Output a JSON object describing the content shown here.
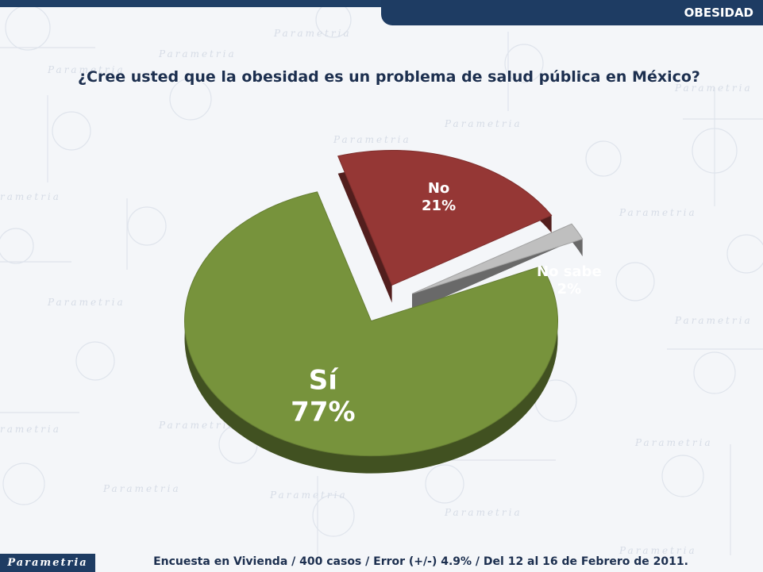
{
  "header": {
    "section_label": "OBESIDAD"
  },
  "question": "¿Cree usted que la obesidad es un problema de salud pública en México?",
  "chart_data": {
    "type": "pie",
    "title": "¿Cree usted que la obesidad es un problema de salud pública en México?",
    "slices": [
      {
        "label": "Sí",
        "value": 77,
        "value_label": "77%",
        "color": "#77933c"
      },
      {
        "label": "No",
        "value": 21,
        "value_label": "21%",
        "color": "#953735"
      },
      {
        "label": "No sabe",
        "value": 2,
        "value_label": "2%",
        "color": "#bfbfbf"
      }
    ]
  },
  "brand": {
    "logo_text": "Parametria"
  },
  "footer": {
    "source_note": "Encuesta en Vivienda / 400 casos / Error (+/-) 4.9% / Del 12 al 16 de Febrero de 2011."
  }
}
